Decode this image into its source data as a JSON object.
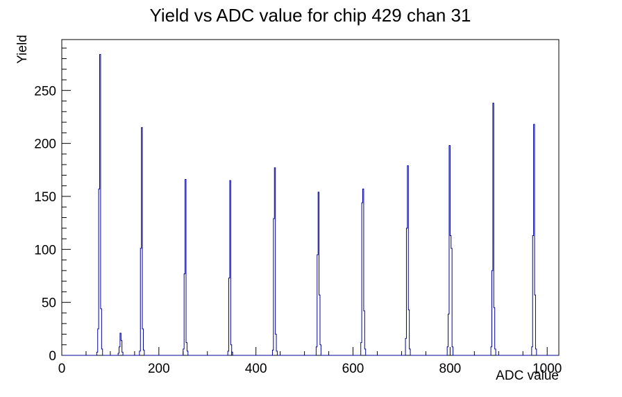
{
  "window": {
    "background": "#ffffff"
  },
  "chart_data": {
    "type": "bar",
    "subtype": "histogram-step-outline",
    "title": "Yield vs ADC value for chip 429 chan 31",
    "xlabel": "ADC value",
    "ylabel": "Yield",
    "xlim": [
      0,
      1024
    ],
    "ylim": [
      0,
      298
    ],
    "x_major_ticks": [
      0,
      200,
      400,
      600,
      800,
      1000
    ],
    "x_minor_step": 50,
    "y_major_ticks": [
      0,
      50,
      100,
      150,
      200,
      250
    ],
    "y_minor_step": 10,
    "grid": false,
    "legend": false,
    "line_color": "#000099",
    "frame_color": "#000000",
    "bin_width": 2,
    "bins": [
      [
        72,
        3
      ],
      [
        74,
        25
      ],
      [
        76,
        157
      ],
      [
        78,
        284
      ],
      [
        80,
        44
      ],
      [
        82,
        6
      ],
      [
        116,
        2
      ],
      [
        118,
        8
      ],
      [
        120,
        21
      ],
      [
        122,
        14
      ],
      [
        124,
        3
      ],
      [
        160,
        4
      ],
      [
        162,
        101
      ],
      [
        164,
        215
      ],
      [
        166,
        25
      ],
      [
        168,
        5
      ],
      [
        250,
        6
      ],
      [
        252,
        77
      ],
      [
        254,
        166
      ],
      [
        256,
        12
      ],
      [
        258,
        4
      ],
      [
        342,
        4
      ],
      [
        344,
        73
      ],
      [
        346,
        165
      ],
      [
        348,
        10
      ],
      [
        350,
        3
      ],
      [
        434,
        5
      ],
      [
        436,
        129
      ],
      [
        438,
        177
      ],
      [
        440,
        20
      ],
      [
        442,
        4
      ],
      [
        524,
        8
      ],
      [
        526,
        95
      ],
      [
        528,
        154
      ],
      [
        530,
        57
      ],
      [
        532,
        10
      ],
      [
        616,
        12
      ],
      [
        618,
        144
      ],
      [
        620,
        157
      ],
      [
        622,
        42
      ],
      [
        624,
        6
      ],
      [
        708,
        16
      ],
      [
        710,
        120
      ],
      [
        712,
        179
      ],
      [
        714,
        43
      ],
      [
        716,
        6
      ],
      [
        794,
        8
      ],
      [
        796,
        39
      ],
      [
        798,
        198
      ],
      [
        800,
        113
      ],
      [
        802,
        101
      ],
      [
        804,
        8
      ],
      [
        884,
        8
      ],
      [
        886,
        80
      ],
      [
        888,
        238
      ],
      [
        890,
        45
      ],
      [
        892,
        6
      ],
      [
        968,
        8
      ],
      [
        970,
        113
      ],
      [
        972,
        218
      ],
      [
        974,
        57
      ],
      [
        976,
        6
      ]
    ],
    "peaks": [
      {
        "adc": 78,
        "yield": 284
      },
      {
        "adc": 120,
        "yield": 21
      },
      {
        "adc": 164,
        "yield": 215
      },
      {
        "adc": 254,
        "yield": 166
      },
      {
        "adc": 346,
        "yield": 165
      },
      {
        "adc": 438,
        "yield": 177
      },
      {
        "adc": 528,
        "yield": 154
      },
      {
        "adc": 620,
        "yield": 157
      },
      {
        "adc": 712,
        "yield": 179
      },
      {
        "adc": 798,
        "yield": 198
      },
      {
        "adc": 888,
        "yield": 238
      },
      {
        "adc": 972,
        "yield": 218
      }
    ]
  }
}
